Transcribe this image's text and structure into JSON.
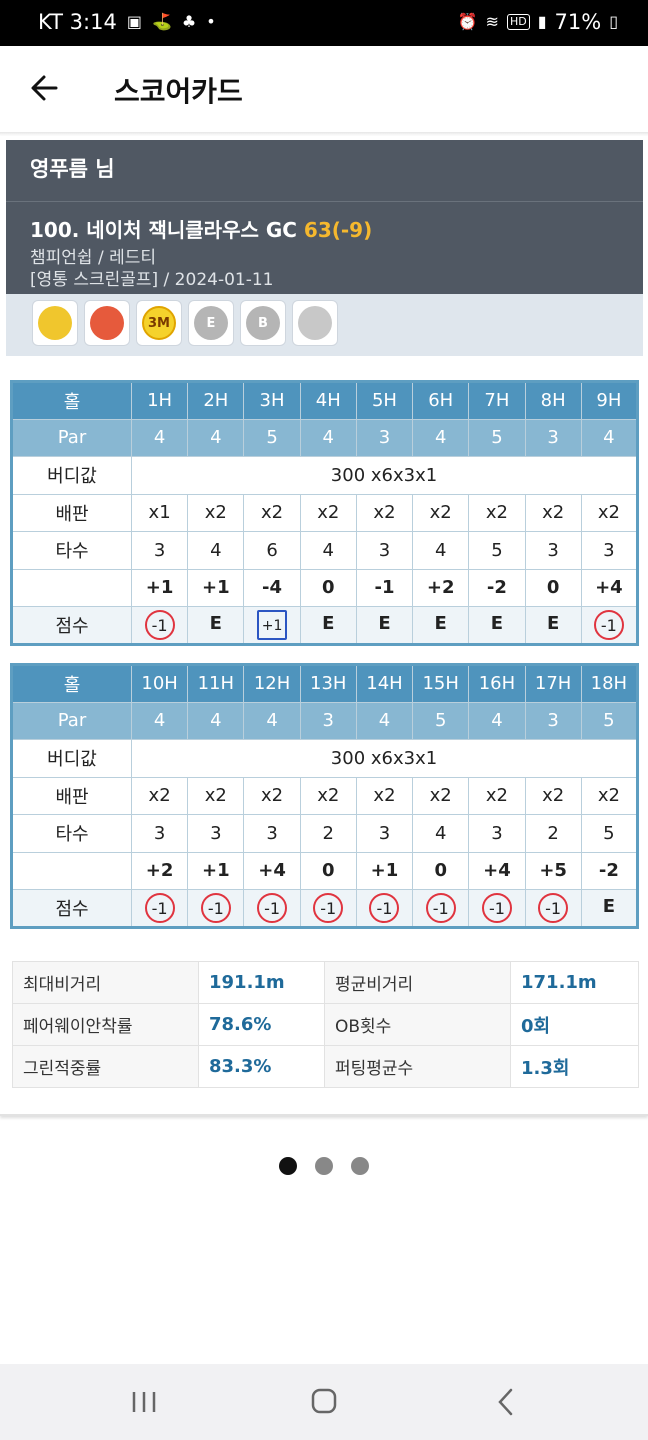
{
  "status": {
    "carrier_time": "KT 3:14",
    "battery": "71%",
    "icons": [
      "gallery-icon",
      "golf-icon",
      "golf-icon-2",
      "dot-icon",
      "alarm-icon",
      "wifi-icon",
      "hd-icon",
      "signal-icon",
      "battery-icon"
    ]
  },
  "appbar": {
    "title": "스코어카드",
    "back_icon": "back-arrow-icon"
  },
  "player": {
    "name": "영푸름 님",
    "course": "100. 네이처 잭니클라우스 GC",
    "score": "63(-9)",
    "tee": "챔피언쉽 / 레드티",
    "venue_date": "[영통 스크린골프] / 2024-01-11"
  },
  "badges": [
    {
      "icon": "bird-badge-icon",
      "color": "#f0c62d"
    },
    {
      "icon": "balloon-badge-icon",
      "color": "#e65a3c"
    },
    {
      "icon": "3m-badge-icon",
      "label": "3M",
      "color": "#f5d22c"
    },
    {
      "icon": "e-badge-icon",
      "label": "E",
      "color": "#b5b5b5"
    },
    {
      "icon": "b-badge-icon",
      "label": "B",
      "color": "#b5b5b5"
    },
    {
      "icon": "gift-badge-icon",
      "color": "#c8c8c8"
    }
  ],
  "front": {
    "labels": {
      "hole": "홀",
      "par": "Par",
      "birdie": "버디값",
      "multiplier": "배판",
      "strokes": "타수",
      "points": "점수"
    },
    "holes": [
      "1H",
      "2H",
      "3H",
      "4H",
      "5H",
      "6H",
      "7H",
      "8H",
      "9H"
    ],
    "par": [
      "4",
      "4",
      "5",
      "4",
      "3",
      "4",
      "5",
      "3",
      "4"
    ],
    "birdie_value": "300 x6x3x1",
    "multiplier": [
      "x1",
      "x2",
      "x2",
      "x2",
      "x2",
      "x2",
      "x2",
      "x2",
      "x2"
    ],
    "strokes": [
      "3",
      "4",
      "6",
      "4",
      "3",
      "4",
      "5",
      "3",
      "3"
    ],
    "diff": [
      "+1",
      "+1",
      "-4",
      "0",
      "-1",
      "+2",
      "-2",
      "0",
      "+4"
    ],
    "points": [
      "-1",
      "E",
      "+1",
      "E",
      "E",
      "E",
      "E",
      "E",
      "-1"
    ]
  },
  "back": {
    "labels": {
      "hole": "홀",
      "par": "Par",
      "birdie": "버디값",
      "multiplier": "배판",
      "strokes": "타수",
      "points": "점수"
    },
    "holes": [
      "10H",
      "11H",
      "12H",
      "13H",
      "14H",
      "15H",
      "16H",
      "17H",
      "18H"
    ],
    "par": [
      "4",
      "4",
      "4",
      "3",
      "4",
      "5",
      "4",
      "3",
      "5"
    ],
    "birdie_value": "300 x6x3x1",
    "multiplier": [
      "x2",
      "x2",
      "x2",
      "x2",
      "x2",
      "x2",
      "x2",
      "x2",
      "x2"
    ],
    "strokes": [
      "3",
      "3",
      "3",
      "2",
      "3",
      "4",
      "3",
      "2",
      "5"
    ],
    "diff": [
      "+2",
      "+1",
      "+4",
      "0",
      "+1",
      "0",
      "+4",
      "+5",
      "-2"
    ],
    "points": [
      "-1",
      "-1",
      "-1",
      "-1",
      "-1",
      "-1",
      "-1",
      "-1",
      "E"
    ]
  },
  "stats": [
    {
      "k1": "최대비거리",
      "v1": "191.1m",
      "k2": "평균비거리",
      "v2": "171.1m"
    },
    {
      "k1": "페어웨이안착률",
      "v1": "78.6%",
      "k2": "OB횟수",
      "v2": "0회"
    },
    {
      "k1": "그린적중률",
      "v1": "83.3%",
      "k2": "퍼팅평균수",
      "v2": "1.3회"
    }
  ],
  "pager": {
    "count": 3,
    "active": 0
  },
  "nav": {
    "icons": [
      "recent-apps-icon",
      "home-icon",
      "back-icon"
    ]
  }
}
